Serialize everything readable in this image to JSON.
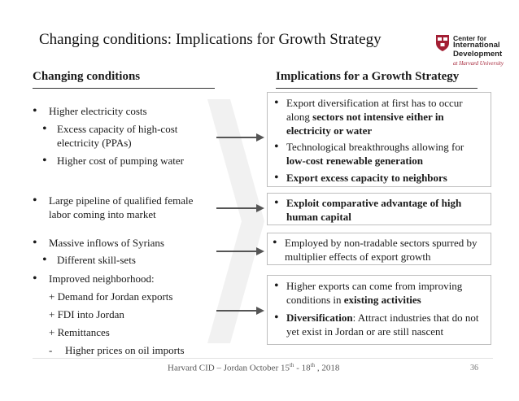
{
  "slide": {
    "title": "Changing conditions: Implications for Growth Strategy"
  },
  "logo": {
    "line1": "Center for",
    "line2": "International",
    "line3": "Development",
    "line4": "at Harvard University",
    "brand_color": "#a31f34"
  },
  "left": {
    "heading": "Changing conditions",
    "g1": {
      "b1": "Higher electricity costs",
      "s1": "Excess capacity of high-cost electricity (PPAs)",
      "s2": "Higher cost of pumping water"
    },
    "g2": {
      "b1": "Large pipeline of qualified female labor coming into market"
    },
    "g3": {
      "b1": "Massive inflows of Syrians",
      "s1": "Different skill-sets"
    },
    "g4": {
      "b1": "Improved neighborhood:",
      "l1": "+ Demand for Jordan exports",
      "l2": "+ FDI into Jordan",
      "l3": "+ Remittances",
      "l4_dash": "-",
      "l4": "Higher prices on oil imports"
    }
  },
  "right": {
    "heading": "Implications for a Growth Strategy",
    "box1": {
      "b1_a": "Export diversification at first has to occur along ",
      "b1_b": "sectors not intensive either in electricity or water",
      "b2_a": "Technological breakthroughs allowing for ",
      "b2_b": "low-cost renewable generation",
      "b3": "Export excess capacity to neighbors"
    },
    "box2": {
      "b1": "Exploit comparative advantage of high human capital"
    },
    "box3": {
      "b1": "Employed by non-tradable sectors spurred by multiplier effects of export growth"
    },
    "box4": {
      "b1_a": "Higher exports can come from improving conditions in ",
      "b1_b": "existing activities",
      "b2_a": "Diversification",
      "b2_b": ": Attract industries that do not yet exist in Jordan or are still nascent"
    }
  },
  "footer": {
    "text_a": "Harvard CID – Jordan October 15",
    "sup_a": "th",
    "text_b": " - 18",
    "sup_b": "th",
    "text_c": " , 2018",
    "page": "36"
  }
}
